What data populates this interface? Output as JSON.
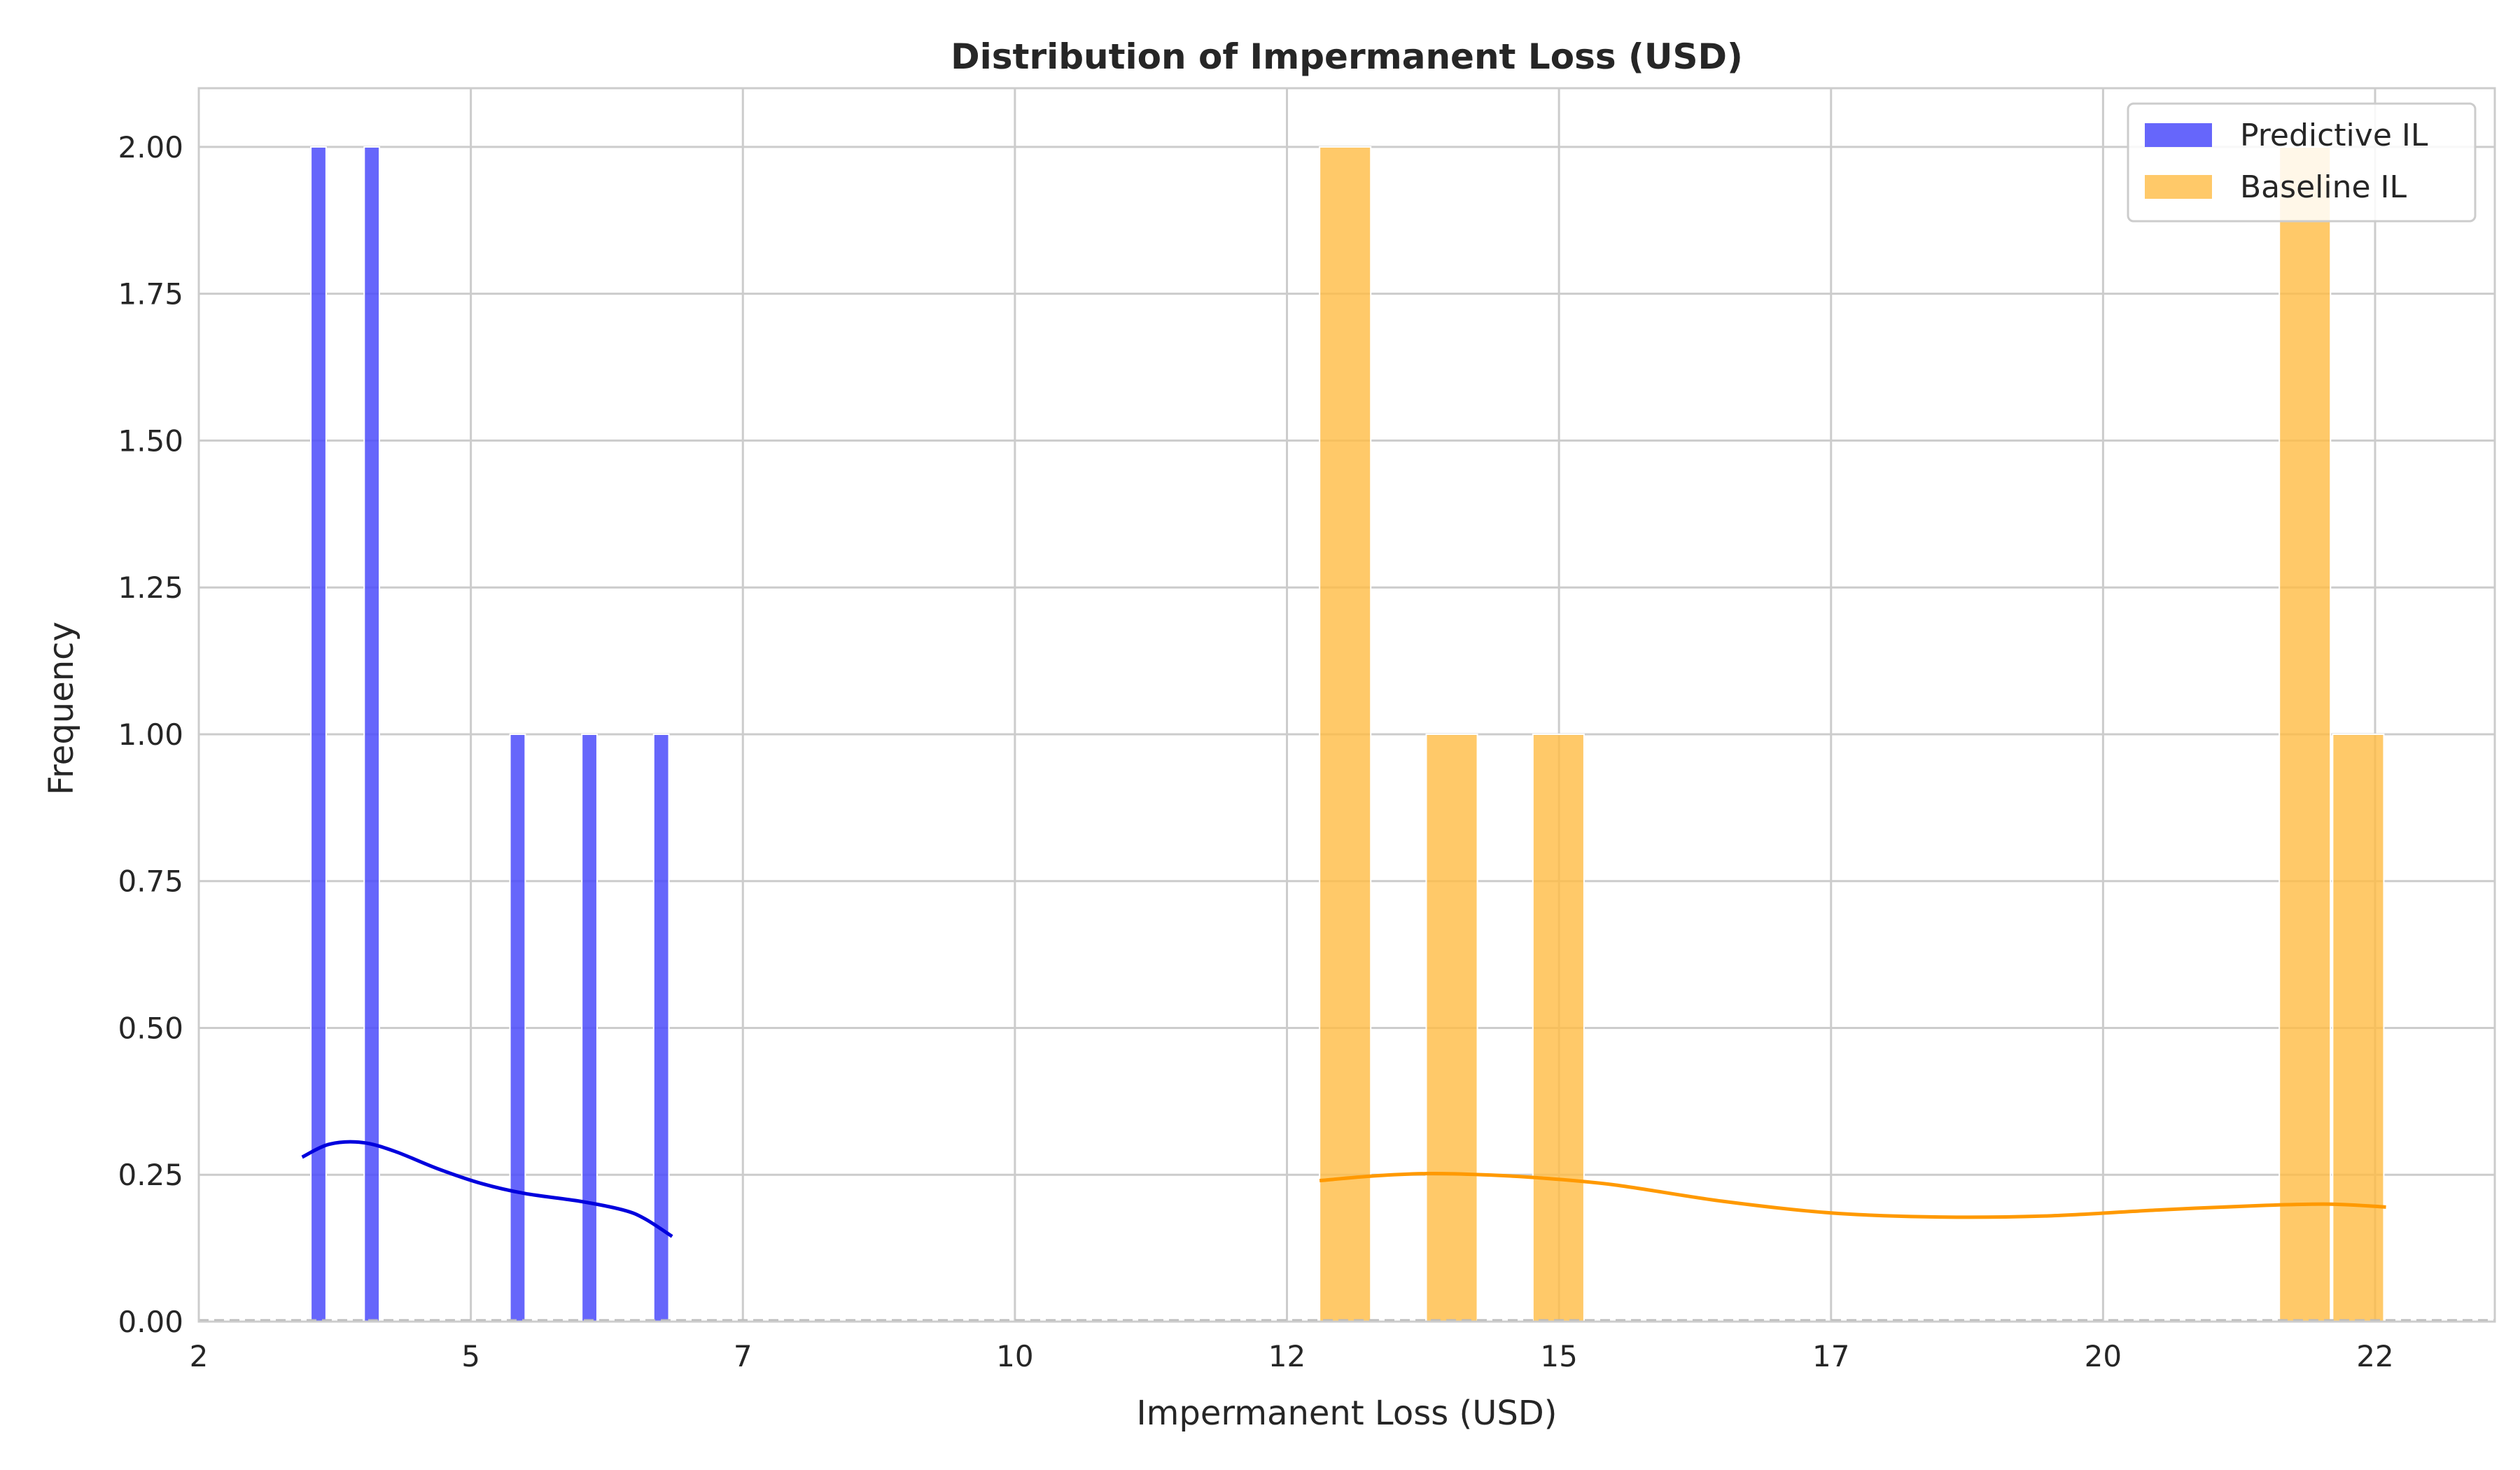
{
  "chart_data": {
    "type": "bar",
    "title": "Distribution of Impermanent Loss (USD)",
    "xlabel": "Impermanent Loss (USD)",
    "ylabel": "Frequency",
    "xlim": [
      2.0,
      23.1
    ],
    "ylim": [
      0,
      2.1
    ],
    "x_tick_values": [
      2.0,
      4.5,
      7.0,
      9.5,
      12.0,
      14.5,
      17.0,
      19.5,
      22.0
    ],
    "x_tick_labels": [
      "2",
      "5",
      "7",
      "10",
      "12",
      "15",
      "17",
      "20",
      "22"
    ],
    "y_ticks": [
      "0.00",
      "0.25",
      "0.50",
      "0.75",
      "1.00",
      "1.25",
      "1.50",
      "1.75",
      "2.00"
    ],
    "y_tick_values": [
      0,
      0.25,
      0.5,
      0.75,
      1.0,
      1.25,
      1.5,
      1.75,
      2.0
    ],
    "grid": true,
    "legend_position": "top-right",
    "series": [
      {
        "name": "Predictive IL",
        "color": "#4b4bfa",
        "kde_color": "#0000dd",
        "bins": [
          {
            "x0": 3.03,
            "x1": 3.17,
            "count": 2
          },
          {
            "x0": 3.52,
            "x1": 3.66,
            "count": 2
          },
          {
            "x0": 4.86,
            "x1": 5.0,
            "count": 1
          },
          {
            "x0": 5.52,
            "x1": 5.66,
            "count": 1
          },
          {
            "x0": 6.18,
            "x1": 6.32,
            "count": 1
          }
        ],
        "kde": [
          [
            2.95,
            0.28
          ],
          [
            3.2,
            0.302
          ],
          [
            3.5,
            0.305
          ],
          [
            3.8,
            0.29
          ],
          [
            4.2,
            0.26
          ],
          [
            4.6,
            0.235
          ],
          [
            5.0,
            0.218
          ],
          [
            5.5,
            0.205
          ],
          [
            5.9,
            0.19
          ],
          [
            6.1,
            0.175
          ],
          [
            6.35,
            0.145
          ]
        ]
      },
      {
        "name": "Baseline IL",
        "color": "#ffbb44",
        "kde_color": "#ff9900",
        "bins": [
          {
            "x0": 12.3,
            "x1": 12.77,
            "count": 2
          },
          {
            "x0": 13.28,
            "x1": 13.75,
            "count": 1
          },
          {
            "x0": 14.26,
            "x1": 14.73,
            "count": 1
          },
          {
            "x0": 21.12,
            "x1": 21.59,
            "count": 2
          },
          {
            "x0": 21.61,
            "x1": 22.08,
            "count": 1
          }
        ],
        "kde": [
          [
            12.3,
            0.24
          ],
          [
            12.8,
            0.248
          ],
          [
            13.3,
            0.252
          ],
          [
            13.8,
            0.25
          ],
          [
            14.3,
            0.245
          ],
          [
            15.0,
            0.233
          ],
          [
            16.0,
            0.205
          ],
          [
            17.0,
            0.185
          ],
          [
            18.0,
            0.178
          ],
          [
            19.0,
            0.18
          ],
          [
            20.0,
            0.19
          ],
          [
            21.0,
            0.198
          ],
          [
            21.6,
            0.2
          ],
          [
            22.1,
            0.195
          ]
        ]
      }
    ]
  }
}
